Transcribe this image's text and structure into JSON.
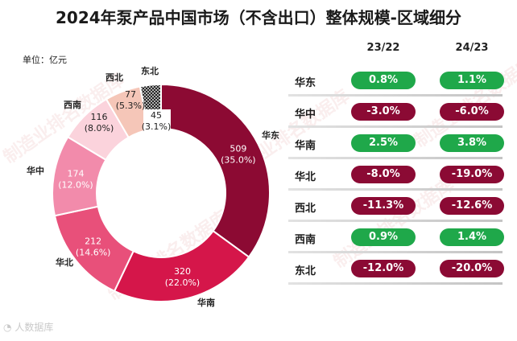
{
  "title": "2024年泵产品中国市场（不含出口）整体规模-区域细分",
  "unit_label": "单位：亿元",
  "watermark_text": "制造业排名数据库",
  "footer_watermark": "人数据库",
  "colors": {
    "positive": "#1fa84a",
    "negative": "#8b0a34"
  },
  "chart_data": [
    {
      "type": "pie",
      "title": "",
      "unit": "亿元",
      "slices": [
        {
          "name": "华东",
          "value": 509,
          "label": "509",
          "percent": "(35.0%)",
          "color": "#8c0a33"
        },
        {
          "name": "华南",
          "value": 320,
          "label": "320",
          "percent": "(22.0%)",
          "color": "#d5164a"
        },
        {
          "name": "华北",
          "value": 212,
          "label": "212",
          "percent": "(14.6%)",
          "color": "#e8507a"
        },
        {
          "name": "华中",
          "value": 174,
          "label": "174",
          "percent": "(12.0%)",
          "color": "#f28bab"
        },
        {
          "name": "西南",
          "value": 116,
          "label": "116",
          "percent": "(8.0%)",
          "color": "#fbd3dc"
        },
        {
          "name": "西北",
          "value": 77,
          "label": "77",
          "percent": "(5.3%)",
          "color": "#f5c6b8"
        },
        {
          "name": "东北",
          "value": 45,
          "label": "45",
          "percent": "(3.1%)",
          "color": "hatched"
        }
      ]
    },
    {
      "type": "table",
      "columns": [
        "23/22",
        "24/23"
      ],
      "rows": [
        {
          "region": "华东",
          "v2322": "0.8%",
          "v2423": "1.1%",
          "s1": "pos",
          "s2": "pos"
        },
        {
          "region": "华中",
          "v2322": "-3.0%",
          "v2423": "-6.0%",
          "s1": "neg",
          "s2": "neg"
        },
        {
          "region": "华南",
          "v2322": "2.5%",
          "v2423": "3.8%",
          "s1": "pos",
          "s2": "pos"
        },
        {
          "region": "华北",
          "v2322": "-8.0%",
          "v2423": "-19.0%",
          "s1": "neg",
          "s2": "neg"
        },
        {
          "region": "西北",
          "v2322": "-11.3%",
          "v2423": "-12.6%",
          "s1": "neg",
          "s2": "neg"
        },
        {
          "region": "西南",
          "v2322": "0.9%",
          "v2423": "1.4%",
          "s1": "pos",
          "s2": "pos"
        },
        {
          "region": "东北",
          "v2322": "-12.0%",
          "v2423": "-20.0%",
          "s1": "neg",
          "s2": "neg"
        }
      ]
    }
  ]
}
